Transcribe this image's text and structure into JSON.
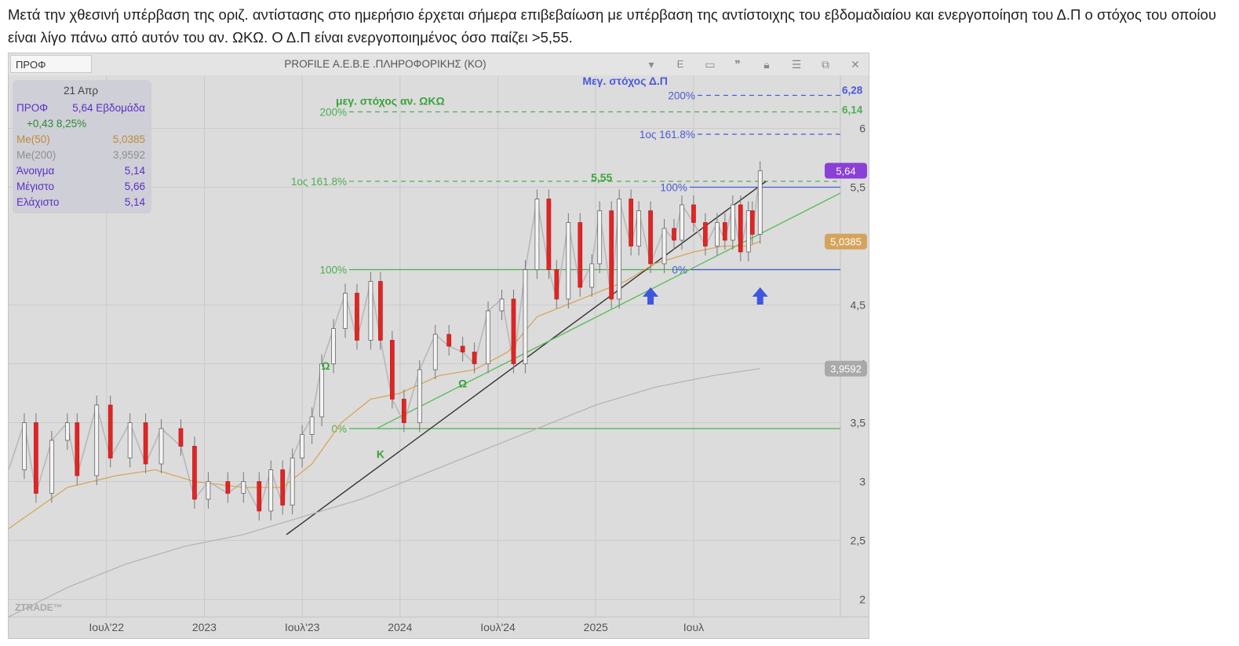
{
  "post": {
    "text": "Μετά την χθεσινή υπέρβαση της οριζ. αντίστασης στο ημερήσιο έρχεται σήμερα επιβεβαίωση με υπέρβαση της αντίστοιχης του εβδομαδιαίου και ενεργοποίηση του Δ.Π ο στόχος του οποίου είναι λίγο πάνω από αυτόν του αν. ΩΚΩ. Ο Δ.Π είναι ενεργοποιημένος όσο παίζει >5,55."
  },
  "window": {
    "symbol": "ΠΡΟΦ",
    "title": "PROFILE Α.Ε.Β.Ε .ΠΛΗΡΟΦΟΡΙΚΗΣ (ΚΟ)",
    "e_label": "E",
    "icons": [
      "chevron-down-icon",
      "panel-icon",
      "quote-icon",
      "lock-icon",
      "menu-icon",
      "window-icon",
      "close-icon"
    ]
  },
  "legend": {
    "date": "21 Απρ",
    "symbol": "ΠΡΟΦ",
    "price_period": "5,64 Εβδομάδα",
    "change": "+0,43 8,25%",
    "rows": [
      {
        "label": "Me(50)",
        "value": "5,0385",
        "color": "#c08a35"
      },
      {
        "label": "Me(200)",
        "value": "3,9592",
        "color": "#8e8e8e"
      },
      {
        "label": "Άνοιγμα",
        "value": "5,14",
        "color": "#5b2fc2"
      },
      {
        "label": "Μέγιστο",
        "value": "5,66",
        "color": "#5b2fc2"
      },
      {
        "label": "Ελάχιστο",
        "value": "5,14",
        "color": "#5b2fc2"
      }
    ]
  },
  "chart_data": {
    "type": "line",
    "title": "PROFILE Α.Ε.Β.Ε .ΠΛΗΡΟΦΟΡΙΚΗΣ (ΚΟ)",
    "interval": "Εβδομάδα",
    "ylim": [
      1.85,
      6.45
    ],
    "y_ticks": [
      2,
      2.5,
      3,
      3.5,
      4,
      4.5,
      5.5,
      6
    ],
    "y_tick_labels": [
      "2",
      "2,5",
      "3",
      "3,5",
      "4",
      "4,5",
      "5,5",
      "6"
    ],
    "x_ticks": [
      {
        "label": "Ιουλ'22",
        "t": 2022.5
      },
      {
        "label": "2023",
        "t": 2023.0
      },
      {
        "label": "Ιουλ'23",
        "t": 2023.5
      },
      {
        "label": "2024",
        "t": 2024.0
      },
      {
        "label": "Ιουλ'24",
        "t": 2024.5
      },
      {
        "label": "2025",
        "t": 2025.0
      },
      {
        "label": "Ιουλ",
        "t": 2025.5
      }
    ],
    "series": [
      {
        "name": "ΠΡΟΦ",
        "color": "#b8b8b8",
        "points": [
          [
            2022.0,
            3.1
          ],
          [
            2022.08,
            3.5
          ],
          [
            2022.14,
            2.9
          ],
          [
            2022.22,
            3.35
          ],
          [
            2022.3,
            3.5
          ],
          [
            2022.35,
            3.05
          ],
          [
            2022.45,
            3.65
          ],
          [
            2022.52,
            3.2
          ],
          [
            2022.62,
            3.5
          ],
          [
            2022.7,
            3.15
          ],
          [
            2022.78,
            3.45
          ],
          [
            2022.88,
            3.3
          ],
          [
            2022.95,
            2.85
          ],
          [
            2023.02,
            3.0
          ],
          [
            2023.12,
            2.9
          ],
          [
            2023.2,
            3.0
          ],
          [
            2023.28,
            2.75
          ],
          [
            2023.34,
            3.1
          ],
          [
            2023.4,
            2.8
          ],
          [
            2023.45,
            3.2
          ],
          [
            2023.5,
            3.4
          ],
          [
            2023.55,
            3.55
          ],
          [
            2023.6,
            4.0
          ],
          [
            2023.66,
            4.3
          ],
          [
            2023.72,
            4.6
          ],
          [
            2023.78,
            4.2
          ],
          [
            2023.85,
            4.7
          ],
          [
            2023.9,
            4.2
          ],
          [
            2023.96,
            3.7
          ],
          [
            2024.02,
            3.5
          ],
          [
            2024.1,
            3.95
          ],
          [
            2024.18,
            4.25
          ],
          [
            2024.25,
            4.15
          ],
          [
            2024.32,
            4.1
          ],
          [
            2024.38,
            4.0
          ],
          [
            2024.45,
            4.45
          ],
          [
            2024.52,
            4.55
          ],
          [
            2024.58,
            4.0
          ],
          [
            2024.64,
            4.8
          ],
          [
            2024.7,
            5.4
          ],
          [
            2024.76,
            4.8
          ],
          [
            2024.8,
            4.55
          ],
          [
            2024.86,
            5.2
          ],
          [
            2024.92,
            4.65
          ],
          [
            2024.98,
            4.85
          ],
          [
            2025.02,
            5.3
          ],
          [
            2025.08,
            4.55
          ],
          [
            2025.12,
            5.4
          ],
          [
            2025.18,
            5.0
          ],
          [
            2025.22,
            5.3
          ],
          [
            2025.28,
            4.85
          ],
          [
            2025.35,
            5.15
          ],
          [
            2025.4,
            5.05
          ],
          [
            2025.44,
            5.35
          ],
          [
            2025.5,
            5.2
          ],
          [
            2025.56,
            5.0
          ],
          [
            2025.62,
            5.2
          ],
          [
            2025.66,
            5.05
          ],
          [
            2025.7,
            5.35
          ],
          [
            2025.74,
            4.95
          ],
          [
            2025.78,
            5.3
          ],
          [
            2025.8,
            5.1
          ],
          [
            2025.84,
            5.64
          ]
        ]
      },
      {
        "name": "Me(50)",
        "color": "#d9a55a",
        "points": [
          [
            2022.0,
            2.6
          ],
          [
            2022.3,
            2.95
          ],
          [
            2022.55,
            3.05
          ],
          [
            2022.75,
            3.1
          ],
          [
            2022.95,
            3.0
          ],
          [
            2023.2,
            2.95
          ],
          [
            2023.4,
            2.95
          ],
          [
            2023.55,
            3.15
          ],
          [
            2023.7,
            3.5
          ],
          [
            2023.85,
            3.7
          ],
          [
            2024.0,
            3.75
          ],
          [
            2024.2,
            3.9
          ],
          [
            2024.38,
            3.95
          ],
          [
            2024.55,
            4.1
          ],
          [
            2024.7,
            4.4
          ],
          [
            2024.85,
            4.5
          ],
          [
            2025.0,
            4.6
          ],
          [
            2025.15,
            4.7
          ],
          [
            2025.3,
            4.85
          ],
          [
            2025.5,
            4.95
          ],
          [
            2025.65,
            5.0
          ],
          [
            2025.78,
            5.0
          ],
          [
            2025.84,
            5.04
          ]
        ]
      },
      {
        "name": "Me(200)",
        "color": "#b5b5b5",
        "points": [
          [
            2022.0,
            1.85
          ],
          [
            2022.3,
            2.1
          ],
          [
            2022.6,
            2.3
          ],
          [
            2022.9,
            2.45
          ],
          [
            2023.2,
            2.55
          ],
          [
            2023.5,
            2.7
          ],
          [
            2023.8,
            2.85
          ],
          [
            2024.1,
            3.05
          ],
          [
            2024.4,
            3.25
          ],
          [
            2024.7,
            3.45
          ],
          [
            2025.0,
            3.65
          ],
          [
            2025.3,
            3.8
          ],
          [
            2025.6,
            3.9
          ],
          [
            2025.84,
            3.96
          ]
        ]
      }
    ],
    "trendlines": [
      {
        "color": "#333333",
        "points": [
          [
            2023.42,
            2.55
          ],
          [
            2025.87,
            5.55
          ]
        ]
      },
      {
        "color": "#5bbf5b",
        "points": [
          [
            2023.88,
            3.45
          ],
          [
            2026.25,
            5.45
          ]
        ]
      }
    ],
    "levels": [
      {
        "label": "200%",
        "y": 6.14,
        "color": "#4caf50",
        "dashed": true,
        "t1": 2023.74,
        "t2": 2026.25,
        "value": "6,14"
      },
      {
        "label": "1ος 161.8%",
        "y": 5.55,
        "color": "#4caf50",
        "dashed": true,
        "t1": 2023.74,
        "t2": 2026.25
      },
      {
        "label": "100%",
        "y": 4.8,
        "color": "#4caf50",
        "dashed": false,
        "t1": 2023.74,
        "t2": 2026.25
      },
      {
        "label": "0%",
        "y": 3.45,
        "color": "#4caf50",
        "dashed": false,
        "t1": 2023.74,
        "t2": 2026.25
      },
      {
        "label": "200%",
        "y": 6.28,
        "color": "#4a5ad8",
        "dashed": true,
        "t1": 2025.52,
        "t2": 2026.25,
        "value": "6,28"
      },
      {
        "label": "1ος 161.8%",
        "y": 5.95,
        "color": "#4a5ad8",
        "dashed": true,
        "t1": 2025.52,
        "t2": 2026.25
      },
      {
        "label": "100%",
        "y": 5.5,
        "color": "#4a5ad8",
        "dashed": false,
        "t1": 2025.48,
        "t2": 2026.25
      },
      {
        "label": "0%",
        "y": 4.8,
        "color": "#4a5ad8",
        "dashed": false,
        "t1": 2025.48,
        "t2": 2026.25
      }
    ],
    "annotations": [
      {
        "text": "μεγ. στόχος αν. ΩΚΩ",
        "t": 2023.95,
        "y": 6.2,
        "color": "#3aa33a"
      },
      {
        "text": "Μεγ. στόχος Δ.Π",
        "t": 2025.15,
        "y": 6.37,
        "color": "#4a5ad8"
      },
      {
        "text": "5,55",
        "t": 2025.03,
        "y": 5.55,
        "color": "#3aa33a"
      },
      {
        "text": "Ω",
        "t": 2023.62,
        "y": 3.95,
        "color": "#3aa33a"
      },
      {
        "text": "Κ",
        "t": 2023.9,
        "y": 3.2,
        "color": "#3aa33a"
      },
      {
        "text": "Ω",
        "t": 2024.32,
        "y": 3.8,
        "color": "#3aa33a"
      }
    ],
    "price_badges": [
      {
        "text": "5,64",
        "y": 5.64,
        "color": "#8a3fd6"
      },
      {
        "text": "5,0385",
        "y": 5.0385,
        "color": "#d4a35c"
      },
      {
        "text": "3,9592",
        "y": 3.9592,
        "color": "#a9a9a9"
      }
    ],
    "arrows": [
      {
        "t": 2025.28,
        "y": 4.65
      },
      {
        "t": 2025.84,
        "y": 4.65
      }
    ],
    "watermark": "ZTRADE™"
  }
}
